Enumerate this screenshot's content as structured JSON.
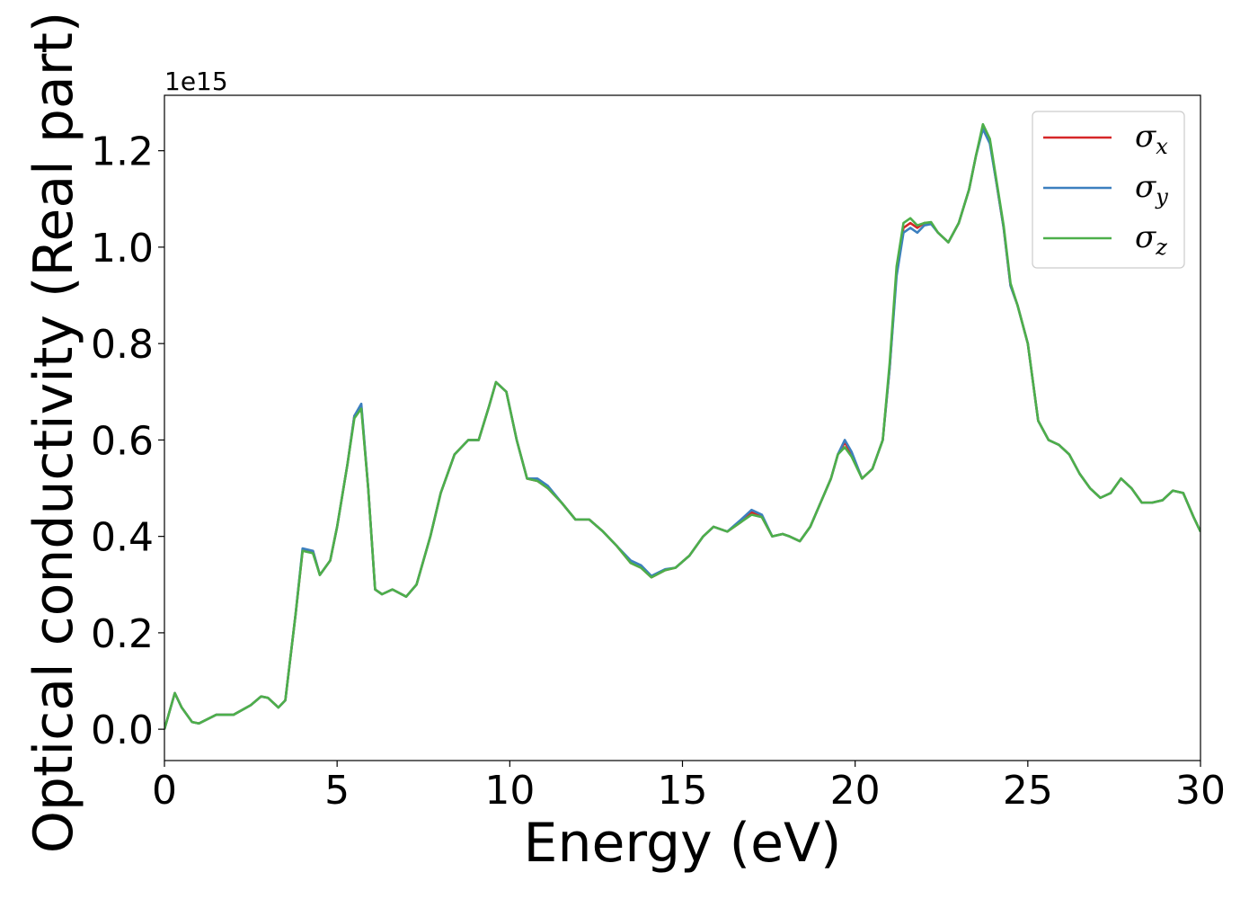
{
  "chart_data": {
    "type": "line",
    "title": "",
    "xlabel": "Energy (eV)",
    "ylabel": "Optical conductivity (Real part)",
    "y_offset_text": "1e15",
    "xlim": [
      0,
      30
    ],
    "ylim": [
      -0.065,
      1.315
    ],
    "xticks": [
      0,
      5,
      10,
      15,
      20,
      25,
      30
    ],
    "xtick_labels": [
      "0",
      "5",
      "10",
      "15",
      "20",
      "25",
      "30"
    ],
    "yticks": [
      0.0,
      0.2,
      0.4,
      0.6,
      0.8,
      1.0,
      1.2
    ],
    "ytick_labels": [
      "0.0",
      "0.2",
      "0.4",
      "0.6",
      "0.8",
      "1.0",
      "1.2"
    ],
    "grid": false,
    "legend_position": "top-right",
    "x": [
      0,
      0.3,
      0.5,
      0.8,
      1.0,
      1.5,
      2.0,
      2.5,
      2.8,
      3.0,
      3.3,
      3.5,
      3.8,
      4.0,
      4.3,
      4.5,
      4.8,
      5.0,
      5.3,
      5.5,
      5.7,
      5.9,
      6.1,
      6.3,
      6.6,
      7.0,
      7.3,
      7.7,
      8.0,
      8.4,
      8.8,
      9.1,
      9.4,
      9.6,
      9.9,
      10.2,
      10.5,
      10.8,
      11.1,
      11.5,
      11.9,
      12.3,
      12.7,
      13.1,
      13.5,
      13.8,
      14.1,
      14.5,
      14.8,
      15.2,
      15.6,
      15.9,
      16.3,
      16.7,
      17.0,
      17.3,
      17.6,
      17.9,
      18.1,
      18.4,
      18.7,
      19.0,
      19.3,
      19.5,
      19.7,
      19.9,
      20.2,
      20.5,
      20.8,
      21.0,
      21.2,
      21.4,
      21.6,
      21.8,
      22.0,
      22.2,
      22.4,
      22.7,
      23.0,
      23.3,
      23.5,
      23.7,
      23.9,
      24.1,
      24.3,
      24.5,
      24.7,
      25.0,
      25.3,
      25.6,
      25.9,
      26.2,
      26.5,
      26.8,
      27.1,
      27.4,
      27.7,
      28.0,
      28.3,
      28.6,
      28.9,
      29.2,
      29.5,
      29.8,
      30.0
    ],
    "series": [
      {
        "name": "σx",
        "label_main": "σ",
        "label_sub": "x",
        "color": "#d62728",
        "values": [
          0.0,
          0.075,
          0.045,
          0.015,
          0.012,
          0.03,
          0.03,
          0.05,
          0.068,
          0.065,
          0.045,
          0.06,
          0.24,
          0.37,
          0.37,
          0.32,
          0.35,
          0.42,
          0.55,
          0.65,
          0.67,
          0.5,
          0.29,
          0.28,
          0.29,
          0.275,
          0.3,
          0.4,
          0.49,
          0.57,
          0.6,
          0.6,
          0.67,
          0.72,
          0.7,
          0.6,
          0.52,
          0.515,
          0.5,
          0.47,
          0.435,
          0.435,
          0.41,
          0.38,
          0.345,
          0.335,
          0.315,
          0.33,
          0.335,
          0.36,
          0.4,
          0.42,
          0.41,
          0.43,
          0.45,
          0.44,
          0.4,
          0.405,
          0.4,
          0.39,
          0.42,
          0.47,
          0.52,
          0.57,
          0.595,
          0.57,
          0.52,
          0.54,
          0.6,
          0.75,
          0.95,
          1.04,
          1.05,
          1.04,
          1.05,
          1.05,
          1.03,
          1.01,
          1.05,
          1.12,
          1.19,
          1.25,
          1.22,
          1.13,
          1.04,
          0.92,
          0.88,
          0.8,
          0.64,
          0.6,
          0.59,
          0.57,
          0.53,
          0.5,
          0.48,
          0.49,
          0.52,
          0.5,
          0.47,
          0.47,
          0.475,
          0.495,
          0.49,
          0.44,
          0.41
        ]
      },
      {
        "name": "σy",
        "label_main": "σ",
        "label_sub": "y",
        "color": "#3c7fbf",
        "values": [
          0.0,
          0.075,
          0.045,
          0.015,
          0.012,
          0.03,
          0.03,
          0.05,
          0.068,
          0.065,
          0.045,
          0.06,
          0.24,
          0.375,
          0.37,
          0.32,
          0.35,
          0.42,
          0.55,
          0.65,
          0.675,
          0.5,
          0.29,
          0.28,
          0.29,
          0.275,
          0.3,
          0.4,
          0.49,
          0.57,
          0.6,
          0.6,
          0.67,
          0.72,
          0.7,
          0.6,
          0.52,
          0.52,
          0.505,
          0.47,
          0.435,
          0.435,
          0.41,
          0.38,
          0.35,
          0.34,
          0.318,
          0.332,
          0.335,
          0.36,
          0.4,
          0.42,
          0.41,
          0.435,
          0.455,
          0.445,
          0.4,
          0.405,
          0.4,
          0.39,
          0.42,
          0.47,
          0.52,
          0.57,
          0.6,
          0.575,
          0.52,
          0.54,
          0.6,
          0.75,
          0.94,
          1.03,
          1.04,
          1.03,
          1.045,
          1.048,
          1.03,
          1.01,
          1.05,
          1.12,
          1.19,
          1.245,
          1.215,
          1.13,
          1.04,
          0.92,
          0.88,
          0.8,
          0.64,
          0.6,
          0.59,
          0.57,
          0.53,
          0.5,
          0.48,
          0.49,
          0.52,
          0.5,
          0.47,
          0.47,
          0.475,
          0.495,
          0.49,
          0.44,
          0.41
        ]
      },
      {
        "name": "σz",
        "label_main": "σ",
        "label_sub": "z",
        "color": "#4daf4a",
        "values": [
          0.0,
          0.075,
          0.045,
          0.015,
          0.012,
          0.03,
          0.03,
          0.05,
          0.068,
          0.065,
          0.045,
          0.06,
          0.24,
          0.37,
          0.365,
          0.32,
          0.35,
          0.42,
          0.55,
          0.645,
          0.665,
          0.5,
          0.29,
          0.28,
          0.29,
          0.275,
          0.3,
          0.4,
          0.49,
          0.57,
          0.6,
          0.6,
          0.67,
          0.72,
          0.7,
          0.6,
          0.52,
          0.515,
          0.5,
          0.47,
          0.435,
          0.435,
          0.41,
          0.38,
          0.345,
          0.335,
          0.315,
          0.33,
          0.335,
          0.36,
          0.4,
          0.42,
          0.41,
          0.43,
          0.445,
          0.44,
          0.4,
          0.405,
          0.4,
          0.39,
          0.42,
          0.47,
          0.52,
          0.57,
          0.585,
          0.565,
          0.52,
          0.54,
          0.6,
          0.76,
          0.96,
          1.05,
          1.06,
          1.045,
          1.05,
          1.052,
          1.03,
          1.01,
          1.05,
          1.12,
          1.19,
          1.255,
          1.225,
          1.135,
          1.045,
          0.925,
          0.88,
          0.8,
          0.64,
          0.6,
          0.59,
          0.57,
          0.53,
          0.5,
          0.48,
          0.49,
          0.52,
          0.5,
          0.47,
          0.47,
          0.475,
          0.495,
          0.49,
          0.44,
          0.41
        ]
      }
    ]
  }
}
